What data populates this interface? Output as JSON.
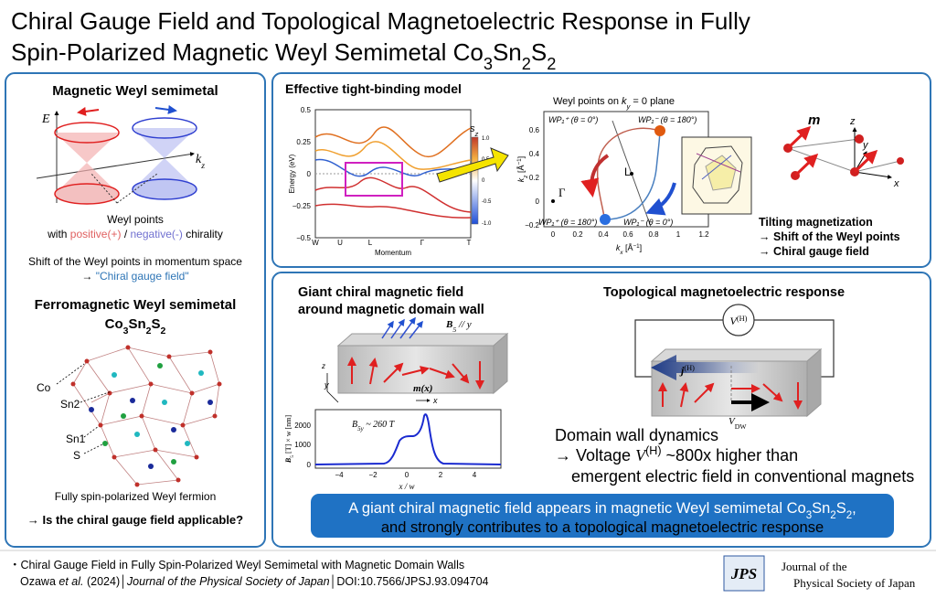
{
  "header": {
    "title_line1": "Chiral Gauge Field and Topological Magnetoelectric Response in Fully",
    "title_line2": [
      "Spin-Polarized Magnetic Weyl Semimetal Co",
      "3",
      "Sn",
      "2",
      "S",
      "2"
    ]
  },
  "weyl_panel": {
    "heading": "Magnetic Weyl semimetal",
    "axis_energy": "E",
    "axis_momentum": [
      "k",
      "z"
    ],
    "weyl_points": "Weyl points",
    "chirality": [
      "with ",
      "positive(+)",
      " / ",
      "negative(-)",
      " chirality"
    ],
    "shift": "Shift of the Weyl points in momentum space",
    "gauge": [
      "→ ",
      "\"Chiral gauge field\""
    ]
  },
  "crystal_panel": {
    "heading": "Ferromagnetic Weyl semimetal",
    "formula": [
      "Co",
      "3",
      "Sn",
      "2",
      "S",
      "2"
    ],
    "atoms": [
      "Co",
      "Sn2",
      "Sn1",
      "S"
    ],
    "fermion": "Fully spin-polarized Weyl fermion",
    "question": "→ Is the chiral gauge field applicable?"
  },
  "model_panel": {
    "heading": "Effective tight-binding model",
    "band_plot": {
      "ylabel": "Energy (eV)",
      "xlabel": "Momentum",
      "yticks": [
        "0.5",
        "0.25",
        "0",
        "−0.25",
        "−0.5"
      ],
      "xticks": [
        "W",
        "U",
        "L",
        "Γ",
        "T"
      ],
      "colorbar_label": [
        "s",
        "z"
      ],
      "colorbar_ticks": [
        "1.0",
        "0.5",
        "0",
        "-0.5",
        "-1.0"
      ]
    },
    "weyl_plot": {
      "title": [
        "Weyl points on ",
        "k",
        "y",
        " = 0 plane"
      ],
      "ylabel": [
        "k",
        "z",
        " [Å",
        "−1",
        "]"
      ],
      "xlabel": [
        "k",
        "x",
        " [Å",
        "−1",
        "]"
      ],
      "yticks": [
        "0.6",
        "0.4",
        "0.2",
        "0",
        "−0.2"
      ],
      "xticks": [
        "0",
        "0.2",
        "0.4",
        "0.6",
        "0.8",
        "1",
        "1.2"
      ],
      "points": [
        "WP₁⁺ (θ = 0°)",
        "WP₁⁻ (θ = 180°)",
        "WP₁⁺ (θ = 180°)",
        "WP₁⁻ (θ = 0°)"
      ],
      "gamma": "Γ",
      "l_point": "L"
    },
    "magnetization": {
      "m": "m",
      "axes": [
        "z",
        "y",
        "x"
      ]
    },
    "summary": [
      "Tilting magnetization",
      "→ Shift of the Weyl points",
      "→ Chiral gauge field"
    ]
  },
  "field_panel": {
    "heading": [
      "Giant chiral magnetic field",
      "around magnetic domain wall"
    ],
    "field_label": [
      "B",
      "5",
      " // y"
    ],
    "moment_label": "m(x)",
    "axes": [
      "z",
      "y",
      "x"
    ],
    "plot": {
      "ylabel": [
        "B",
        "5",
        " [T] × w [nm]"
      ],
      "xlabel": "x / w",
      "yticks": [
        "2000",
        "1000",
        "0"
      ],
      "xticks": [
        "−4",
        "−2",
        "0",
        "2",
        "4"
      ],
      "annotation": [
        "B",
        "5y",
        " ~ 260 T"
      ]
    }
  },
  "response_panel": {
    "heading": "Topological magnetoelectric response",
    "voltage": [
      "V",
      "(H)"
    ],
    "current": [
      "j",
      "(H)"
    ],
    "velocity": [
      "V",
      "DW"
    ],
    "line1": "Domain wall dynamics",
    "line2": [
      "→ Voltage ",
      "V",
      "(H)",
      " ~800x higher than"
    ],
    "line3": "emergent electric field in conventional magnets"
  },
  "conclusion": {
    "line1": [
      "A giant chiral magnetic field appears in magnetic Weyl semimetal Co",
      "3",
      "Sn",
      "2",
      "S",
      "2",
      ","
    ],
    "line2": "and strongly contributes to a topological magnetoelectric response"
  },
  "footer": {
    "paper": "・Chiral Gauge Field in Fully Spin-Polarized Weyl Semimetal with Magnetic Domain Walls",
    "citation": [
      "Ozawa ",
      "et al.",
      " (2024)│",
      "Journal of the Physical Society of Japan",
      "│DOI:10.7566/JPSJ.93.094704"
    ],
    "logo": "JPS",
    "journal": [
      "Journal of the",
      "Physical Society of Japan"
    ]
  }
}
